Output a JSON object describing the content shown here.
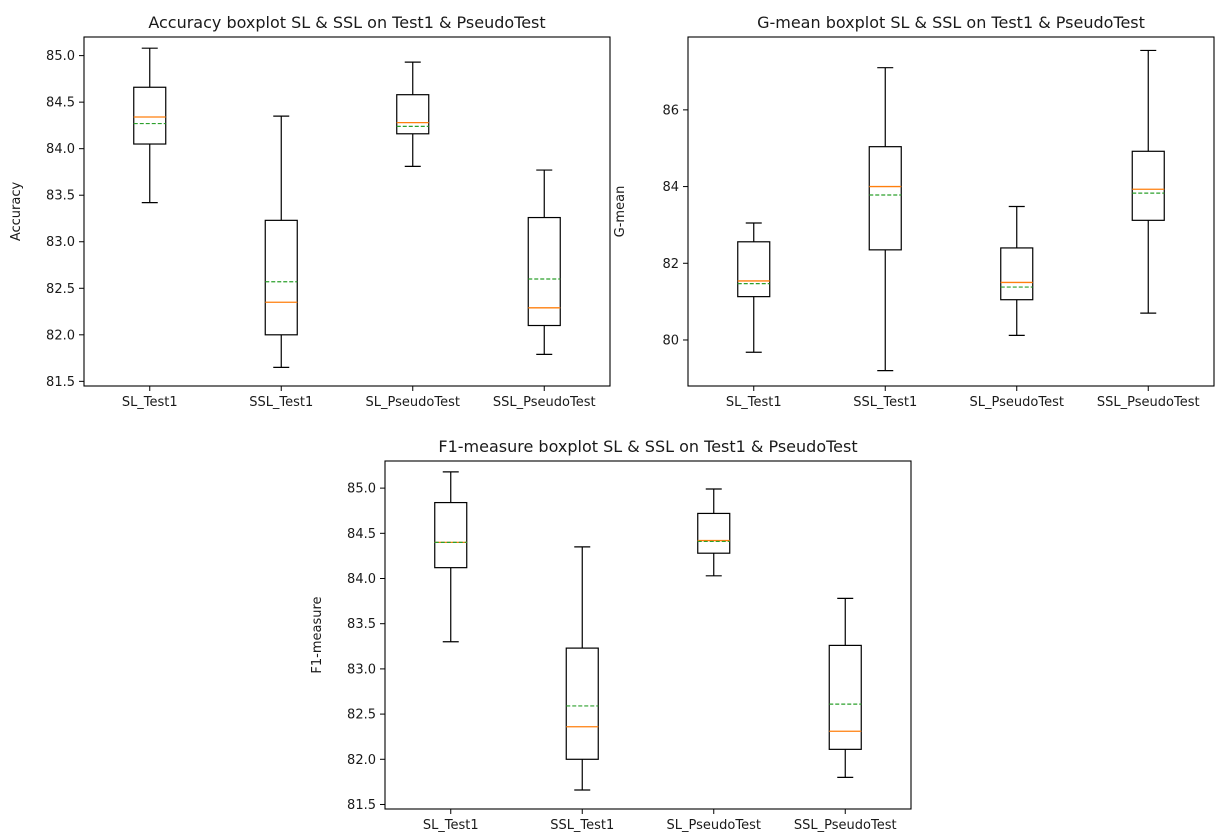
{
  "chart_data": [
    {
      "type": "boxplot",
      "title": "Accuracy boxplot SL & SSL on Test1 & PseudoTest",
      "xlabel": "",
      "ylabel": "Accuracy",
      "ylim": [
        81.45,
        85.2
      ],
      "yticks": [
        81.5,
        82.0,
        82.5,
        83.0,
        83.5,
        84.0,
        84.5,
        85.0
      ],
      "tick_decimals": 1,
      "categories": [
        "SL_Test1",
        "SSL_Test1",
        "SL_PseudoTest",
        "SSL_PseudoTest"
      ],
      "boxes": [
        {
          "whisker_low": 83.42,
          "q1": 84.05,
          "median": 84.34,
          "mean": 84.27,
          "q3": 84.66,
          "whisker_high": 85.08
        },
        {
          "whisker_low": 81.65,
          "q1": 82.0,
          "median": 82.35,
          "mean": 82.57,
          "q3": 83.23,
          "whisker_high": 84.35
        },
        {
          "whisker_low": 83.81,
          "q1": 84.16,
          "median": 84.28,
          "mean": 84.24,
          "q3": 84.58,
          "whisker_high": 84.93
        },
        {
          "whisker_low": 81.79,
          "q1": 82.1,
          "median": 82.29,
          "mean": 82.6,
          "q3": 83.26,
          "whisker_high": 83.77
        }
      ],
      "median_color": "#ff7f0e",
      "mean_color": "#2ca02c",
      "grid": false
    },
    {
      "type": "boxplot",
      "title": "G-mean boxplot SL & SSL on Test1 & PseudoTest",
      "xlabel": "",
      "ylabel": "G-mean",
      "ylim": [
        78.8,
        87.9
      ],
      "yticks": [
        80,
        82,
        84,
        86
      ],
      "tick_decimals": 0,
      "categories": [
        "SL_Test1",
        "SSL_Test1",
        "SL_PseudoTest",
        "SSL_PseudoTest"
      ],
      "boxes": [
        {
          "whisker_low": 79.68,
          "q1": 81.13,
          "median": 81.54,
          "mean": 81.47,
          "q3": 82.56,
          "whisker_high": 83.05
        },
        {
          "whisker_low": 79.2,
          "q1": 82.35,
          "median": 84.0,
          "mean": 83.78,
          "q3": 85.04,
          "whisker_high": 87.1
        },
        {
          "whisker_low": 80.12,
          "q1": 81.05,
          "median": 81.5,
          "mean": 81.38,
          "q3": 82.4,
          "whisker_high": 83.48
        },
        {
          "whisker_low": 80.7,
          "q1": 83.12,
          "median": 83.93,
          "mean": 83.83,
          "q3": 84.92,
          "whisker_high": 87.55
        }
      ],
      "median_color": "#ff7f0e",
      "mean_color": "#2ca02c",
      "grid": false
    },
    {
      "type": "boxplot",
      "title": "F1-measure boxplot SL & SSL on Test1 & PseudoTest",
      "xlabel": "",
      "ylabel": "F1-measure",
      "ylim": [
        81.45,
        85.3
      ],
      "yticks": [
        81.5,
        82.0,
        82.5,
        83.0,
        83.5,
        84.0,
        84.5,
        85.0
      ],
      "tick_decimals": 1,
      "categories": [
        "SL_Test1",
        "SSL_Test1",
        "SL_PseudoTest",
        "SSL_PseudoTest"
      ],
      "boxes": [
        {
          "whisker_low": 83.3,
          "q1": 84.12,
          "median": 84.4,
          "mean": 84.4,
          "q3": 84.84,
          "whisker_high": 85.18
        },
        {
          "whisker_low": 81.66,
          "q1": 82.0,
          "median": 82.36,
          "mean": 82.59,
          "q3": 83.23,
          "whisker_high": 84.35
        },
        {
          "whisker_low": 84.03,
          "q1": 84.28,
          "median": 84.42,
          "mean": 84.41,
          "q3": 84.72,
          "whisker_high": 84.99
        },
        {
          "whisker_low": 81.8,
          "q1": 82.11,
          "median": 82.31,
          "mean": 82.61,
          "q3": 83.26,
          "whisker_high": 83.78
        }
      ],
      "median_color": "#ff7f0e",
      "mean_color": "#2ca02c",
      "grid": false
    }
  ]
}
